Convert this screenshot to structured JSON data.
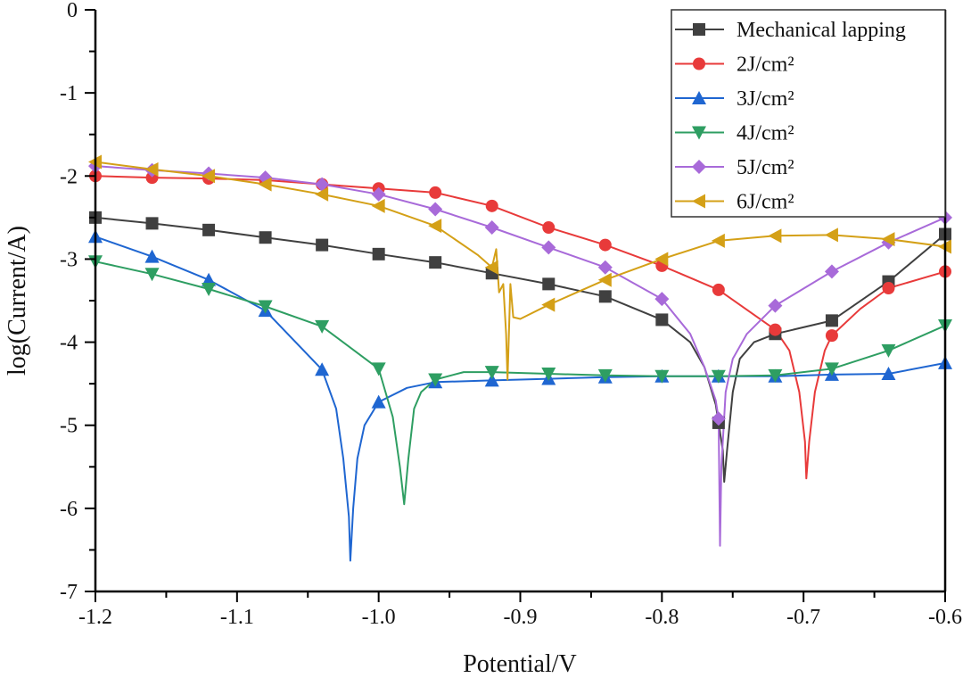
{
  "chart_data": {
    "type": "line",
    "title": "",
    "xlabel": "Potential/V",
    "ylabel": "log(Current/A)",
    "xlim": [
      -1.2,
      -0.6
    ],
    "ylim": [
      -7,
      0
    ],
    "xticks": [
      -1.2,
      -1.1,
      -1.0,
      -0.9,
      -0.8,
      -0.7,
      -0.6
    ],
    "xtick_labels": [
      "-1.2",
      "-1.1",
      "-1.0",
      "-0.9",
      "-0.8",
      "-0.7",
      "-0.6"
    ],
    "yticks": [
      0,
      -1,
      -2,
      -3,
      -4,
      -5,
      -6,
      -7
    ],
    "ytick_labels": [
      "0",
      "-1",
      "-2",
      "-3",
      "-4",
      "-5",
      "-6",
      "-7"
    ],
    "grid": false,
    "legend_position": "top-right",
    "series": [
      {
        "name": "Mechanical lapping",
        "color": "#404040",
        "marker": "square",
        "x": [
          -1.2,
          -1.16,
          -1.12,
          -1.08,
          -1.04,
          -1.0,
          -0.96,
          -0.92,
          -0.88,
          -0.84,
          -0.8,
          -0.78,
          -0.77,
          -0.762,
          -0.757,
          -0.756,
          -0.754,
          -0.75,
          -0.745,
          -0.735,
          -0.72,
          -0.68,
          -0.64,
          -0.6
        ],
        "y": [
          -2.5,
          -2.57,
          -2.65,
          -2.74,
          -2.83,
          -2.94,
          -3.04,
          -3.17,
          -3.3,
          -3.45,
          -3.73,
          -4.0,
          -4.3,
          -4.75,
          -5.3,
          -5.68,
          -5.3,
          -4.6,
          -4.2,
          -4.0,
          -3.9,
          -3.74,
          -3.27,
          -2.7
        ]
      },
      {
        "name": "2J/cm²",
        "color": "#e83a3a",
        "marker": "circle",
        "x": [
          -1.2,
          -1.16,
          -1.12,
          -1.08,
          -1.04,
          -1.0,
          -0.96,
          -0.92,
          -0.88,
          -0.84,
          -0.8,
          -0.76,
          -0.72,
          -0.71,
          -0.703,
          -0.699,
          -0.698,
          -0.696,
          -0.692,
          -0.685,
          -0.68,
          -0.66,
          -0.64,
          -0.6
        ],
        "y": [
          -2.0,
          -2.02,
          -2.03,
          -2.05,
          -2.1,
          -2.15,
          -2.2,
          -2.36,
          -2.62,
          -2.83,
          -3.08,
          -3.37,
          -3.85,
          -4.1,
          -4.6,
          -5.2,
          -5.64,
          -5.2,
          -4.6,
          -4.1,
          -3.92,
          -3.6,
          -3.35,
          -3.15
        ]
      },
      {
        "name": "3J/cm²",
        "color": "#1f66d1",
        "marker": "triangle-up",
        "x": [
          -1.2,
          -1.16,
          -1.12,
          -1.08,
          -1.04,
          -1.03,
          -1.025,
          -1.021,
          -1.02,
          -1.018,
          -1.015,
          -1.01,
          -1.0,
          -0.98,
          -0.96,
          -0.92,
          -0.88,
          -0.84,
          -0.8,
          -0.76,
          -0.72,
          -0.68,
          -0.64,
          -0.6
        ],
        "y": [
          -2.73,
          -2.97,
          -3.25,
          -3.62,
          -4.33,
          -4.8,
          -5.4,
          -6.1,
          -6.63,
          -6.0,
          -5.4,
          -5.0,
          -4.72,
          -4.55,
          -4.48,
          -4.46,
          -4.44,
          -4.42,
          -4.41,
          -4.41,
          -4.41,
          -4.39,
          -4.38,
          -4.25
        ]
      },
      {
        "name": "4J/cm²",
        "color": "#2e9e62",
        "marker": "triangle-down",
        "x": [
          -1.2,
          -1.16,
          -1.12,
          -1.08,
          -1.04,
          -1.0,
          -0.99,
          -0.985,
          -0.982,
          -0.979,
          -0.975,
          -0.97,
          -0.96,
          -0.94,
          -0.92,
          -0.88,
          -0.84,
          -0.8,
          -0.76,
          -0.72,
          -0.68,
          -0.64,
          -0.6
        ],
        "y": [
          -3.03,
          -3.18,
          -3.36,
          -3.57,
          -3.81,
          -4.32,
          -4.9,
          -5.5,
          -5.95,
          -5.4,
          -4.8,
          -4.6,
          -4.45,
          -4.36,
          -4.36,
          -4.38,
          -4.4,
          -4.41,
          -4.41,
          -4.4,
          -4.32,
          -4.1,
          -3.8
        ]
      },
      {
        "name": "5J/cm²",
        "color": "#a86ad9",
        "marker": "diamond",
        "x": [
          -1.2,
          -1.16,
          -1.12,
          -1.08,
          -1.04,
          -1.0,
          -0.96,
          -0.92,
          -0.88,
          -0.84,
          -0.8,
          -0.78,
          -0.77,
          -0.762,
          -0.76,
          -0.759,
          -0.758,
          -0.755,
          -0.75,
          -0.74,
          -0.72,
          -0.68,
          -0.64,
          -0.6
        ],
        "y": [
          -1.88,
          -1.93,
          -1.97,
          -2.02,
          -2.1,
          -2.22,
          -2.4,
          -2.62,
          -2.86,
          -3.1,
          -3.48,
          -3.9,
          -4.3,
          -4.7,
          -4.92,
          -6.45,
          -5.5,
          -4.6,
          -4.2,
          -3.9,
          -3.56,
          -3.15,
          -2.8,
          -2.5
        ]
      },
      {
        "name": "6J/cm²",
        "color": "#d4a017",
        "marker": "triangle-left",
        "x": [
          -1.2,
          -1.16,
          -1.12,
          -1.08,
          -1.04,
          -1.0,
          -0.96,
          -0.93,
          -0.92,
          -0.917,
          -0.915,
          -0.912,
          -0.91,
          -0.909,
          -0.907,
          -0.905,
          -0.9,
          -0.88,
          -0.86,
          -0.84,
          -0.8,
          -0.76,
          -0.72,
          -0.68,
          -0.64,
          -0.6
        ],
        "y": [
          -1.83,
          -1.92,
          -2.0,
          -2.1,
          -2.22,
          -2.36,
          -2.6,
          -2.95,
          -3.1,
          -2.88,
          -3.4,
          -3.3,
          -3.9,
          -4.45,
          -3.3,
          -3.7,
          -3.72,
          -3.55,
          -3.4,
          -3.25,
          -3.0,
          -2.78,
          -2.72,
          -2.71,
          -2.76,
          -2.85
        ]
      }
    ],
    "marker_step": 0.04
  }
}
